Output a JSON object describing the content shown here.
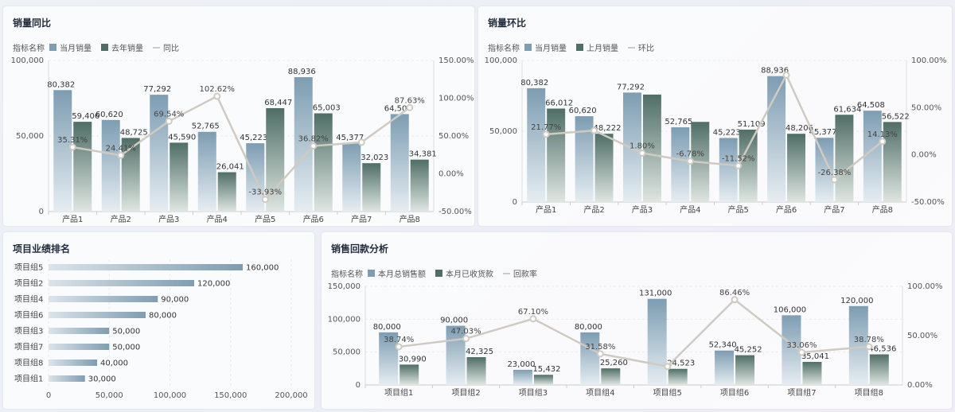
{
  "colors": {
    "bar_a_top": "#7d9db2",
    "bar_a_bottom": "#e6edf2",
    "bar_b_top": "#4f6e66",
    "bar_b_bottom": "#dfe6e2",
    "line": "#cfcac2",
    "hbar_start": "#dbe4ea",
    "hbar_end": "#7f9db1"
  },
  "panels": {
    "yoy": {
      "title": "销量同比",
      "legend": {
        "label": "指标名称",
        "s1": "当月销量",
        "s2": "去年销量",
        "line": "同比"
      }
    },
    "mom": {
      "title": "销量环比",
      "legend": {
        "label": "指标名称",
        "s1": "当月销量",
        "s2": "上月销量",
        "line": "环比"
      }
    },
    "rank": {
      "title": "项目业绩排名"
    },
    "sales": {
      "title": "销售回款分析",
      "legend": {
        "label": "指标名称",
        "s1": "本月总销售额",
        "s2": "本月已收货款",
        "line": "回款率"
      }
    }
  },
  "chart_data": [
    {
      "id": "yoy",
      "type": "bar",
      "title": "销量同比",
      "categories": [
        "产品1",
        "产品2",
        "产品3",
        "产品4",
        "产品5",
        "产品6",
        "产品7",
        "产品8"
      ],
      "series": [
        {
          "name": "当月销量",
          "values": [
            80382,
            60620,
            77292,
            52765,
            45223,
            88936,
            45377,
            64508
          ],
          "labels": [
            "80,382",
            "60,620",
            "77,292",
            "52,765",
            "45,223",
            "88,936",
            "45,377",
            "64,508"
          ]
        },
        {
          "name": "去年销量",
          "values": [
            59406,
            48725,
            45590,
            26041,
            68447,
            65003,
            32023,
            34381
          ],
          "labels": [
            "59,406",
            "48,725",
            "45,590",
            "26,041",
            "68,447",
            "65,003",
            "32,023",
            "34,381"
          ]
        }
      ],
      "line": {
        "name": "同比",
        "values": [
          35.31,
          24.41,
          69.54,
          102.62,
          -33.93,
          36.82,
          41.7,
          87.63
        ],
        "labels": [
          "35.31%",
          "24.41%",
          "69.54%",
          "102.62%",
          "-33.93%",
          "36.82%",
          "",
          "87.63%"
        ]
      },
      "ylim": [
        0,
        100000
      ],
      "yticks": [
        "0",
        "50,000",
        "100,000"
      ],
      "y2lim": [
        -50,
        150
      ],
      "y2ticks": [
        "-50.00%",
        "0.00%",
        "50.00%",
        "100.00%",
        "150.00%"
      ]
    },
    {
      "id": "mom",
      "type": "bar",
      "title": "销量环比",
      "categories": [
        "产品1",
        "产品2",
        "产品3",
        "产品4",
        "产品5",
        "产品6",
        "产品7",
        "产品8"
      ],
      "series": [
        {
          "name": "当月销量",
          "values": [
            80382,
            60620,
            77292,
            52765,
            45223,
            88936,
            45377,
            64508
          ],
          "labels": [
            "80,382",
            "60,620",
            "77,292",
            "52,765",
            "45,223",
            "88,936",
            "45,377",
            "64,508"
          ]
        },
        {
          "name": "上月销量",
          "values": [
            66012,
            48222,
            75900,
            56600,
            51109,
            48206,
            61634,
            56522
          ],
          "labels": [
            "66,012",
            "48,222",
            "",
            "",
            "51,109",
            "48,206",
            "61,634",
            "56,522"
          ]
        }
      ],
      "line": {
        "name": "环比",
        "values": [
          21.77,
          25.71,
          1.8,
          -6.78,
          -11.52,
          84.5,
          -26.38,
          14.13
        ],
        "labels": [
          "21.77%",
          "",
          "1.80%",
          "-6.78%",
          "-11.52%",
          "",
          "-26.38%",
          "14.13%"
        ]
      },
      "ylim": [
        0,
        100000
      ],
      "yticks": [
        "0",
        "50,000",
        "100,000"
      ],
      "y2lim": [
        -50,
        100
      ],
      "y2ticks": [
        "-50.00%",
        "0.00%",
        "50.00%",
        "100.00%"
      ]
    },
    {
      "id": "rank",
      "type": "bar",
      "title": "项目业绩排名",
      "orientation": "horizontal",
      "categories": [
        "项目组5",
        "项目组2",
        "项目组4",
        "项目组6",
        "项目组3",
        "项目组7",
        "项目组8",
        "项目组1"
      ],
      "values": [
        160000,
        120000,
        90000,
        80000,
        50000,
        50000,
        40000,
        30000
      ],
      "labels": [
        "160,000",
        "120,000",
        "90,000",
        "80,000",
        "50,000",
        "50,000",
        "40,000",
        "30,000"
      ],
      "xlim": [
        0,
        200000
      ],
      "xticks": [
        "0",
        "50,000",
        "100,000",
        "150,000",
        "200,000"
      ]
    },
    {
      "id": "sales",
      "type": "bar",
      "title": "销售回款分析",
      "categories": [
        "项目组1",
        "项目组2",
        "项目组3",
        "项目组4",
        "项目组5",
        "项目组6",
        "项目组7",
        "项目组8"
      ],
      "series": [
        {
          "name": "本月总销售额",
          "values": [
            80000,
            90000,
            23000,
            80000,
            131000,
            52340,
            106000,
            120000
          ],
          "labels": [
            "80,000",
            "90,000",
            "23,000",
            "80,000",
            "131,000",
            "52,340",
            "106,000",
            "120,000"
          ]
        },
        {
          "name": "本月已收货款",
          "values": [
            30990,
            42325,
            15432,
            25260,
            24523,
            45252,
            35041,
            46536
          ],
          "labels": [
            "30,990",
            "42,325",
            "15,432",
            "25,260",
            "24,523",
            "45,252",
            "35,041",
            "46,536"
          ]
        }
      ],
      "line": {
        "name": "回款率",
        "values": [
          38.74,
          47.03,
          67.1,
          31.58,
          18.72,
          86.46,
          33.06,
          38.78
        ],
        "labels": [
          "38.74%",
          "47.03%",
          "67.10%",
          "31.58%",
          "",
          "86.46%",
          "33.06%",
          "38.78%"
        ]
      },
      "ylim": [
        0,
        150000
      ],
      "yticks": [
        "0",
        "50,000",
        "100,000",
        "150,000"
      ],
      "y2lim": [
        0,
        100
      ],
      "y2ticks": [
        "0.00%",
        "50.00%",
        "100.00%"
      ]
    }
  ]
}
